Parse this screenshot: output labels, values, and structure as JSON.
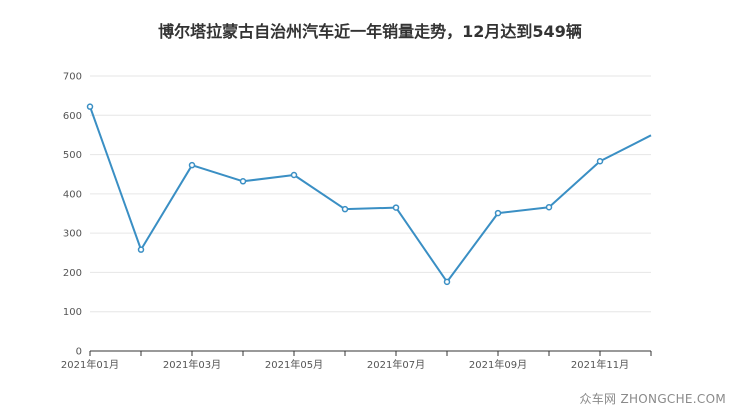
{
  "chart_data": {
    "type": "line",
    "title": "博尔塔拉蒙古自治州汽车近一年销量走势，12月达到549辆",
    "xlabel": "",
    "ylabel": "",
    "ylim": [
      0,
      700
    ],
    "yticks": [
      0,
      100,
      200,
      300,
      400,
      500,
      600,
      700
    ],
    "categories": [
      "2021年01月",
      "2021年02月",
      "2021年03月",
      "2021年04月",
      "2021年05月",
      "2021年06月",
      "2021年07月",
      "2021年08月",
      "2021年09月",
      "2021年10月",
      "2021年11月",
      "2021年12月"
    ],
    "xtick_labels": [
      "2021年01月",
      "2021年03月",
      "2021年05月",
      "2021年07月",
      "2021年09月",
      "2021年11月"
    ],
    "series": [
      {
        "values": [
          622,
          258,
          473,
          432,
          448,
          361,
          365,
          176,
          351,
          366,
          483,
          549
        ]
      }
    ],
    "grid": "horizontal",
    "line_color": "#3a8fc4"
  },
  "watermark": "众车网 ZHONGCHE.COM"
}
